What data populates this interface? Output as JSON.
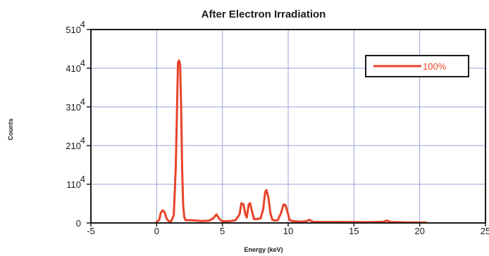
{
  "colors": {
    "series": "#e8432a",
    "grid": "#9aa0d6",
    "frame": "#1a1a1a",
    "background": "#ffffff"
  },
  "chart_data": {
    "type": "line",
    "title": "After Electron Irradiation",
    "xlabel": "Energy (keV)",
    "ylabel": "Counts",
    "xlim": [
      -5,
      25
    ],
    "ylim": [
      0,
      50000
    ],
    "x_ticks": [
      {
        "value": -5,
        "label": "-5"
      },
      {
        "value": 0,
        "label": "0"
      },
      {
        "value": 5,
        "label": "5"
      },
      {
        "value": 10,
        "label": "10"
      },
      {
        "value": 15,
        "label": "15"
      },
      {
        "value": 20,
        "label": "20"
      },
      {
        "value": 25,
        "label": "25"
      }
    ],
    "y_ticks": [
      {
        "value": 0,
        "label": "0"
      },
      {
        "value": 10000,
        "label": "110",
        "exp": "4"
      },
      {
        "value": 20000,
        "label": "210",
        "exp": "4"
      },
      {
        "value": 30000,
        "label": "310",
        "exp": "4"
      },
      {
        "value": 40000,
        "label": "410",
        "exp": "4"
      },
      {
        "value": 50000,
        "label": "510",
        "exp": "4"
      }
    ],
    "grid": true,
    "legend_position": "top-right",
    "series": [
      {
        "name": "100%",
        "x": [
          0.0,
          0.2,
          0.3,
          0.45,
          0.6,
          0.75,
          0.9,
          1.1,
          1.3,
          1.45,
          1.55,
          1.62,
          1.7,
          1.78,
          1.86,
          1.94,
          2.02,
          2.1,
          2.2,
          2.4,
          2.7,
          3.0,
          3.5,
          4.0,
          4.3,
          4.55,
          4.75,
          4.95,
          5.2,
          5.6,
          6.0,
          6.3,
          6.45,
          6.6,
          6.75,
          6.85,
          7.0,
          7.1,
          7.25,
          7.4,
          7.6,
          7.9,
          8.1,
          8.25,
          8.35,
          8.5,
          8.65,
          8.8,
          9.0,
          9.2,
          9.45,
          9.65,
          9.8,
          9.95,
          10.1,
          10.3,
          10.6,
          11.0,
          11.4,
          11.6,
          11.9,
          12.5,
          14.0,
          16.0,
          17.2,
          17.5,
          17.8,
          19.0,
          20.5
        ],
        "y": [
          300,
          800,
          2500,
          3300,
          2800,
          1200,
          500,
          400,
          2000,
          14000,
          30000,
          41500,
          42000,
          41000,
          30000,
          14000,
          4500,
          1500,
          700,
          700,
          700,
          600,
          500,
          600,
          1200,
          2200,
          1100,
          500,
          400,
          500,
          700,
          2200,
          5100,
          4800,
          2200,
          1400,
          4800,
          5100,
          3000,
          1000,
          1000,
          1200,
          3500,
          8000,
          8500,
          6500,
          2500,
          800,
          600,
          700,
          2500,
          4800,
          4600,
          2800,
          800,
          500,
          400,
          300,
          500,
          800,
          300,
          250,
          250,
          200,
          300,
          600,
          250,
          150,
          100
        ]
      }
    ]
  }
}
